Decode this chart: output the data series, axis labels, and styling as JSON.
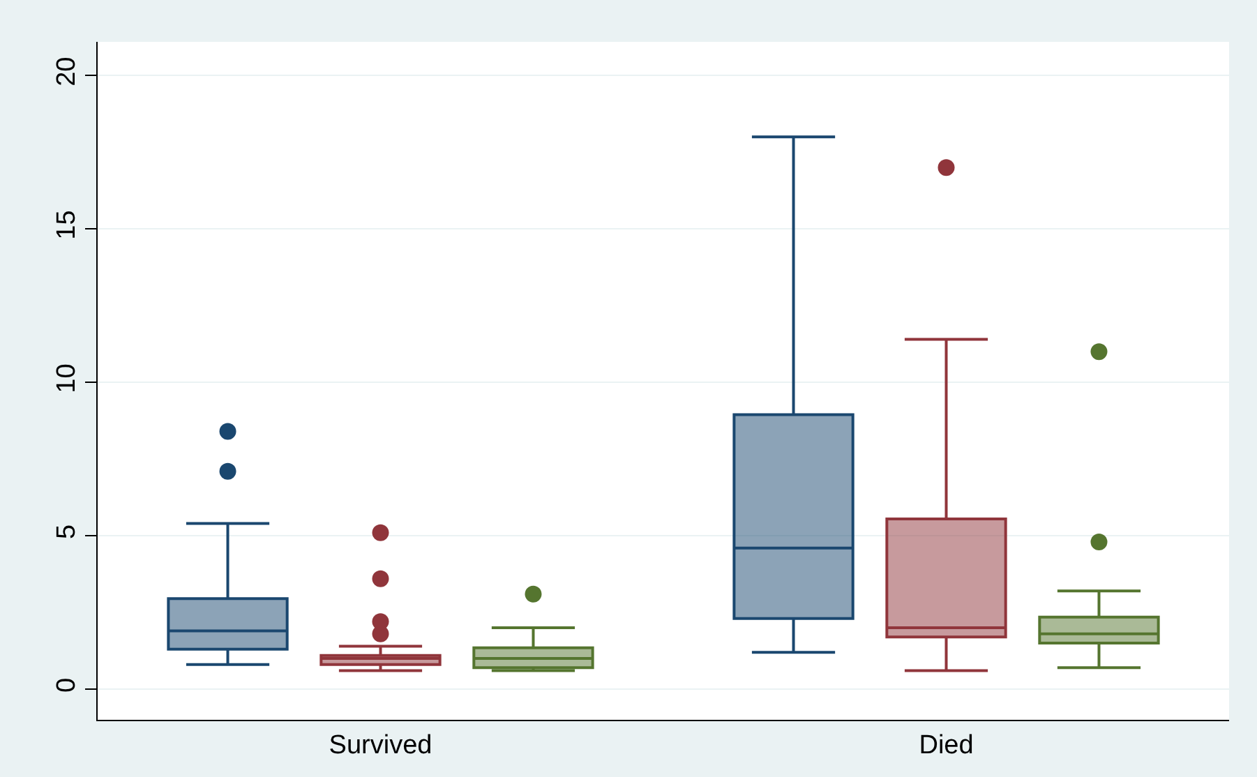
{
  "chart_data": {
    "type": "box",
    "categories": [
      "Survived",
      "Died"
    ],
    "ylim": [
      -1.0,
      21.1
    ],
    "yticks": [
      0,
      5,
      10,
      15,
      20
    ],
    "grid": "y",
    "legend": false,
    "marker": "circle",
    "series": [
      {
        "color": "#1a476f",
        "boxes": [
          {
            "low": 0.8,
            "q1": 1.3,
            "median": 1.9,
            "q3": 2.95,
            "high": 5.4,
            "outliers": [
              7.1,
              8.4
            ]
          },
          {
            "low": 1.2,
            "q1": 2.3,
            "median": 4.6,
            "q3": 8.95,
            "high": 18.0
          }
        ]
      },
      {
        "color": "#90353b",
        "boxes": [
          {
            "low": 0.6,
            "q1": 0.8,
            "median": 1.0,
            "q3": 1.1,
            "high": 1.4,
            "outliers": [
              1.8,
              2.2,
              3.6,
              5.1
            ]
          },
          {
            "low": 0.6,
            "q1": 1.7,
            "median": 2.0,
            "q3": 5.55,
            "high": 11.4,
            "outliers": [
              17.0
            ]
          }
        ]
      },
      {
        "color": "#55752f",
        "boxes": [
          {
            "low": 0.6,
            "q1": 0.7,
            "median": 1.0,
            "q3": 1.35,
            "high": 2.0,
            "outliers": [
              3.1
            ]
          },
          {
            "low": 0.7,
            "q1": 1.5,
            "median": 1.8,
            "q3": 2.35,
            "high": 3.2,
            "outliers": [
              4.8,
              11.0
            ]
          }
        ]
      }
    ]
  }
}
